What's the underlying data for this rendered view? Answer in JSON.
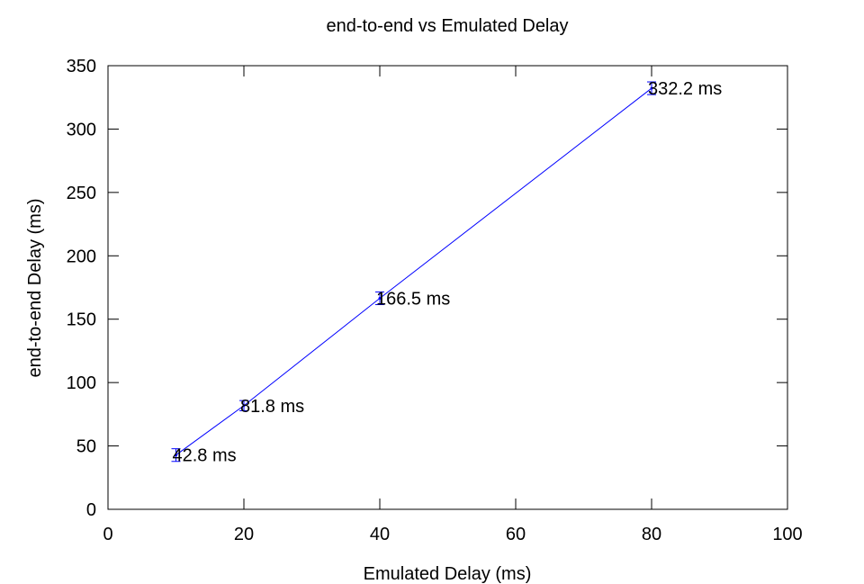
{
  "chart_data": {
    "type": "line",
    "title": "end-to-end vs Emulated Delay",
    "xlabel": "Emulated Delay (ms)",
    "ylabel": "end-to-end Delay (ms)",
    "xlim": [
      0,
      100
    ],
    "ylim": [
      0,
      350
    ],
    "xticks": [
      0,
      20,
      40,
      60,
      80,
      100
    ],
    "yticks": [
      0,
      50,
      100,
      150,
      200,
      250,
      300,
      350
    ],
    "grid": false,
    "legend": "none",
    "series": [
      {
        "color": "#0000ff",
        "x": [
          10,
          20,
          40,
          80
        ],
        "y": [
          42.8,
          81.8,
          166.5,
          332.2
        ],
        "error": [
          5,
          4,
          5,
          5
        ],
        "labels": [
          "42.8 ms",
          "81.8 ms",
          "166.5 ms",
          "332.2 ms"
        ]
      }
    ]
  }
}
